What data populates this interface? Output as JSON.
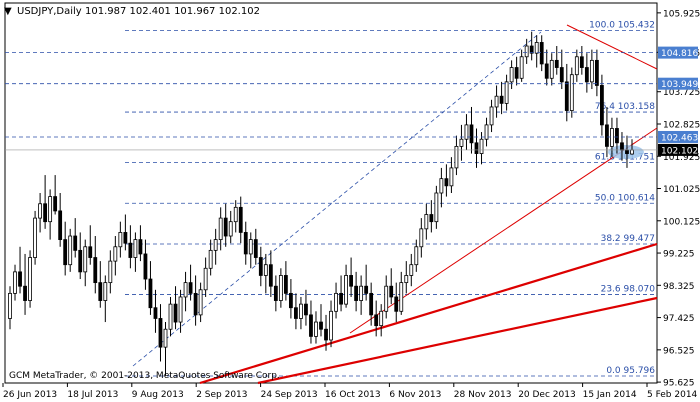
{
  "header": {
    "symbol": "USDJPY,Daily",
    "ohlc": "101.987 102.401 101.967 102.102",
    "collapse_glyph": "▼"
  },
  "footer": {
    "copyright": "GCM MetaTrader, © 2001-2013, MetaQuotes Software Corp."
  },
  "colors": {
    "background": "#ffffff",
    "frame": "#000000",
    "candle": "#000000",
    "fib_line": "#2b4fa8",
    "fib_text": "#2b4fa8",
    "trendline": "#dd0000",
    "highlight": "#4a7fd0",
    "ellipse": "#9fc4ea",
    "grid_line": "#999999"
  },
  "chart_data": {
    "type": "candlestick",
    "symbol": "USDJPY",
    "timeframe": "Daily",
    "y_axis_ticks": [
      "105.925",
      "104.825",
      "103.725",
      "102.825",
      "101.925",
      "101.025",
      "100.125",
      "99.225",
      "98.325",
      "97.425",
      "96.525",
      "95.625"
    ],
    "y_range": [
      95.6,
      106.2
    ],
    "x_axis_ticks": [
      "26 Jun 2013",
      "18 Jul 2013",
      "9 Aug 2013",
      "2 Sep 2013",
      "24 Sep 2013",
      "16 Oct 2013",
      "6 Nov 2013",
      "28 Nov 2013",
      "20 Dec 2013",
      "15 Jan 2014",
      "5 Feb 2014"
    ],
    "fibonacci_levels": [
      {
        "label": "100.0 105.432",
        "price": 105.432
      },
      {
        "label": "76.4 103.158",
        "price": 103.158
      },
      {
        "label": "61.8 101.751",
        "price": 101.751
      },
      {
        "label": "50.0 100.614",
        "price": 100.614
      },
      {
        "label": "38.2 99.477",
        "price": 99.477
      },
      {
        "label": "23.6 98.070",
        "price": 98.07
      },
      {
        "label": "0.0 95.796",
        "price": 95.796
      }
    ],
    "highlighted_levels": [
      {
        "label": "104.816",
        "price": 104.816,
        "style": "blue"
      },
      {
        "label": "103.949",
        "price": 103.949,
        "style": "blue"
      },
      {
        "label": "102.463",
        "price": 102.463,
        "style": "blue"
      },
      {
        "label": "102.102",
        "price": 102.102,
        "style": "black"
      }
    ],
    "current_price": 102.102,
    "candles": [
      [
        97.4,
        98.3,
        97.1,
        98.1
      ],
      [
        98.1,
        98.9,
        97.9,
        98.7
      ],
      [
        98.7,
        99.4,
        98.1,
        98.3
      ],
      [
        98.3,
        99.2,
        97.5,
        97.9
      ],
      [
        97.9,
        99.3,
        97.7,
        99.1
      ],
      [
        99.1,
        100.4,
        98.9,
        100.2
      ],
      [
        100.2,
        100.9,
        99.8,
        100.6
      ],
      [
        100.6,
        101.4,
        99.9,
        100.1
      ],
      [
        100.1,
        101.0,
        99.6,
        100.8
      ],
      [
        100.8,
        101.4,
        100.3,
        100.4
      ],
      [
        100.4,
        100.9,
        99.4,
        99.6
      ],
      [
        99.6,
        100.1,
        98.6,
        98.9
      ],
      [
        98.9,
        99.9,
        98.7,
        99.7
      ],
      [
        99.7,
        100.2,
        99.1,
        99.3
      ],
      [
        99.3,
        99.8,
        98.5,
        98.7
      ],
      [
        98.7,
        99.6,
        98.3,
        99.4
      ],
      [
        99.4,
        100.0,
        98.9,
        99.1
      ],
      [
        99.1,
        99.7,
        98.1,
        98.4
      ],
      [
        98.4,
        99.0,
        97.7,
        97.9
      ],
      [
        97.9,
        98.6,
        97.3,
        98.4
      ],
      [
        98.4,
        99.3,
        98.1,
        99.0
      ],
      [
        99.0,
        99.7,
        98.6,
        99.4
      ],
      [
        99.4,
        100.1,
        99.1,
        99.8
      ],
      [
        99.8,
        100.3,
        99.3,
        99.5
      ],
      [
        99.5,
        100.0,
        98.8,
        99.1
      ],
      [
        99.1,
        99.8,
        98.7,
        99.6
      ],
      [
        99.6,
        100.0,
        99.0,
        99.2
      ],
      [
        99.2,
        99.6,
        98.2,
        98.5
      ],
      [
        98.5,
        99.0,
        97.5,
        97.7
      ],
      [
        97.7,
        98.2,
        97.0,
        97.4
      ],
      [
        97.4,
        97.8,
        96.2,
        96.6
      ],
      [
        96.6,
        97.3,
        95.8,
        97.1
      ],
      [
        97.1,
        98.0,
        96.9,
        97.8
      ],
      [
        97.8,
        98.3,
        97.1,
        97.3
      ],
      [
        97.3,
        98.2,
        97.0,
        98.0
      ],
      [
        98.0,
        98.7,
        97.6,
        98.4
      ],
      [
        98.4,
        98.9,
        97.9,
        98.1
      ],
      [
        98.1,
        98.6,
        97.2,
        97.5
      ],
      [
        97.5,
        98.4,
        97.3,
        98.2
      ],
      [
        98.2,
        99.1,
        98.0,
        98.8
      ],
      [
        98.8,
        99.6,
        98.6,
        99.3
      ],
      [
        99.3,
        99.9,
        98.9,
        99.6
      ],
      [
        99.6,
        100.5,
        99.3,
        100.2
      ],
      [
        100.2,
        100.6,
        99.4,
        99.7
      ],
      [
        99.7,
        100.4,
        99.5,
        100.1
      ],
      [
        100.1,
        100.7,
        99.8,
        100.5
      ],
      [
        100.5,
        100.8,
        99.5,
        99.8
      ],
      [
        99.8,
        100.1,
        98.9,
        99.2
      ],
      [
        99.2,
        99.8,
        98.8,
        99.6
      ],
      [
        99.6,
        99.9,
        98.9,
        99.1
      ],
      [
        99.1,
        99.4,
        98.3,
        98.6
      ],
      [
        98.6,
        99.2,
        98.1,
        98.9
      ],
      [
        98.9,
        99.3,
        98.0,
        98.3
      ],
      [
        98.3,
        98.6,
        97.6,
        97.9
      ],
      [
        97.9,
        98.8,
        97.7,
        98.6
      ],
      [
        98.6,
        99.0,
        97.9,
        98.1
      ],
      [
        98.1,
        98.5,
        97.4,
        97.7
      ],
      [
        97.7,
        98.1,
        97.1,
        97.4
      ],
      [
        97.4,
        98.0,
        97.1,
        97.8
      ],
      [
        97.8,
        98.2,
        97.2,
        97.5
      ],
      [
        97.5,
        97.9,
        96.7,
        96.9
      ],
      [
        96.9,
        97.6,
        96.7,
        97.3
      ],
      [
        97.3,
        97.8,
        96.9,
        97.1
      ],
      [
        97.1,
        97.5,
        96.5,
        96.8
      ],
      [
        96.8,
        97.9,
        96.6,
        97.6
      ],
      [
        97.6,
        98.4,
        97.4,
        98.1
      ],
      [
        98.1,
        98.6,
        97.6,
        97.8
      ],
      [
        97.8,
        98.9,
        97.7,
        98.6
      ],
      [
        98.6,
        99.1,
        98.0,
        98.3
      ],
      [
        98.3,
        98.7,
        97.6,
        97.9
      ],
      [
        97.9,
        98.6,
        97.5,
        98.3
      ],
      [
        98.3,
        98.9,
        97.9,
        98.1
      ],
      [
        98.1,
        98.4,
        97.2,
        97.5
      ],
      [
        97.5,
        97.9,
        96.9,
        97.2
      ],
      [
        97.2,
        97.8,
        96.9,
        97.6
      ],
      [
        97.6,
        98.6,
        97.4,
        98.3
      ],
      [
        98.3,
        98.8,
        97.8,
        98.0
      ],
      [
        98.0,
        98.4,
        97.3,
        97.6
      ],
      [
        97.6,
        98.7,
        97.5,
        98.4
      ],
      [
        98.4,
        99.0,
        98.1,
        98.6
      ],
      [
        98.6,
        99.2,
        98.3,
        98.9
      ],
      [
        98.9,
        99.6,
        98.7,
        99.4
      ],
      [
        99.4,
        100.2,
        99.1,
        99.9
      ],
      [
        99.9,
        100.6,
        99.6,
        100.3
      ],
      [
        100.3,
        100.7,
        99.8,
        100.1
      ],
      [
        100.1,
        101.1,
        99.9,
        100.9
      ],
      [
        100.9,
        101.6,
        100.5,
        101.3
      ],
      [
        101.3,
        101.7,
        100.8,
        101.1
      ],
      [
        101.1,
        101.9,
        100.9,
        101.6
      ],
      [
        101.6,
        102.5,
        101.4,
        102.2
      ],
      [
        102.2,
        102.8,
        101.8,
        102.4
      ],
      [
        102.4,
        103.1,
        102.1,
        102.8
      ],
      [
        102.8,
        103.3,
        102.0,
        102.3
      ],
      [
        102.3,
        102.7,
        101.6,
        102.0
      ],
      [
        102.0,
        102.6,
        101.7,
        102.4
      ],
      [
        102.4,
        103.0,
        102.2,
        102.8
      ],
      [
        102.8,
        103.5,
        102.6,
        103.3
      ],
      [
        103.3,
        103.9,
        103.0,
        103.6
      ],
      [
        103.6,
        104.0,
        103.1,
        103.4
      ],
      [
        103.4,
        104.2,
        103.2,
        104.0
      ],
      [
        104.0,
        104.6,
        103.8,
        104.4
      ],
      [
        104.4,
        104.7,
        103.9,
        104.1
      ],
      [
        104.1,
        104.9,
        104.0,
        104.7
      ],
      [
        104.7,
        105.2,
        104.5,
        105.0
      ],
      [
        105.0,
        105.4,
        104.6,
        104.8
      ],
      [
        104.8,
        105.3,
        104.4,
        105.1
      ],
      [
        105.1,
        105.3,
        104.3,
        104.5
      ],
      [
        104.5,
        104.9,
        103.9,
        104.1
      ],
      [
        104.1,
        104.8,
        103.9,
        104.6
      ],
      [
        104.6,
        105.0,
        104.2,
        104.4
      ],
      [
        104.4,
        104.9,
        103.8,
        104.0
      ],
      [
        104.0,
        104.5,
        102.9,
        103.2
      ],
      [
        103.2,
        104.4,
        103.0,
        104.2
      ],
      [
        104.2,
        104.9,
        104.0,
        104.7
      ],
      [
        104.7,
        105.0,
        104.2,
        104.4
      ],
      [
        104.4,
        104.8,
        103.7,
        104.0
      ],
      [
        104.0,
        104.9,
        103.8,
        104.6
      ],
      [
        104.6,
        104.9,
        103.6,
        103.9
      ],
      [
        103.9,
        104.2,
        102.5,
        102.8
      ],
      [
        102.8,
        103.3,
        101.9,
        102.2
      ],
      [
        102.2,
        103.0,
        101.9,
        102.7
      ],
      [
        102.7,
        103.0,
        102.0,
        102.3
      ],
      [
        102.3,
        102.6,
        101.8,
        102.1
      ],
      [
        102.1,
        102.5,
        101.6,
        102.0
      ],
      [
        101.987,
        102.401,
        101.967,
        102.102
      ]
    ]
  }
}
